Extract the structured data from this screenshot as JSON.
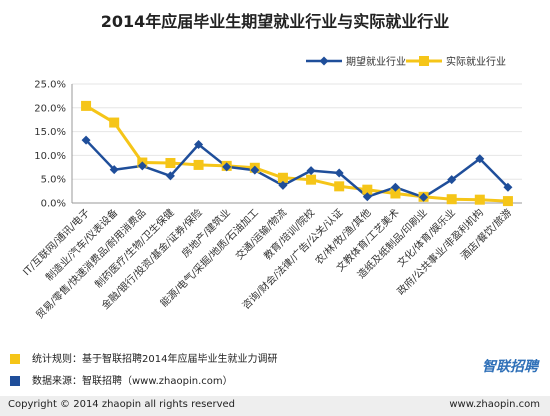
{
  "chart_data": {
    "type": "line",
    "title": "2014年应届毕业生期望就业行业与实际就业行业",
    "categories": [
      "IT/互联网/通讯/电子",
      "制造业/汽车/仪表设备",
      "贸易/零售/快速消费品/耐用消费品",
      "制药医疗/生物/卫生保健",
      "金融/银行/投资/基金/证券/保险",
      "房地产/建筑业",
      "能源/电气/采掘/地质/石油加工",
      "交通/运输/物流",
      "教育/培训/院校",
      "咨询/财会/法律/广告/公关/认证",
      "农/林/牧/渔/其他",
      "文教体育/工艺美术",
      "造纸及纸制品/印刷业",
      "文化/体育/娱乐业",
      "政府/公共事业/非盈利机构",
      "酒店/餐饮/旅游"
    ],
    "series": [
      {
        "name": "期望就业行业",
        "color": "#1f4e9a",
        "marker": "diamond",
        "values": [
          13.2,
          7.0,
          7.8,
          5.7,
          12.3,
          7.6,
          6.9,
          3.7,
          6.8,
          6.3,
          1.3,
          3.3,
          1.2,
          4.9,
          9.3,
          3.3
        ]
      },
      {
        "name": "实际就业行业",
        "color": "#f5c518",
        "marker": "square",
        "values": [
          20.4,
          16.9,
          8.5,
          8.4,
          8.0,
          7.8,
          7.4,
          5.3,
          4.9,
          3.5,
          2.8,
          2.0,
          1.3,
          0.8,
          0.7,
          0.4
        ]
      }
    ],
    "yticks": [
      "0.0%",
      "5.0%",
      "10.0%",
      "15.0%",
      "20.0%",
      "25.0%"
    ],
    "ylim": [
      0,
      25
    ],
    "legend_position": "top-right"
  },
  "footnotes": [
    {
      "text": "统计规则：基于智联招聘2014年应届毕业生就业力调研",
      "color": "#f5c518"
    },
    {
      "text": "数据来源：智联招聘（www.zhaopin.com）",
      "color": "#1f4e9a"
    }
  ],
  "logo": "智联招聘",
  "footer": {
    "copyright": "Copyright  ©  2014 zhaopin all rights reserved",
    "url": "www.zhaopin.com"
  }
}
